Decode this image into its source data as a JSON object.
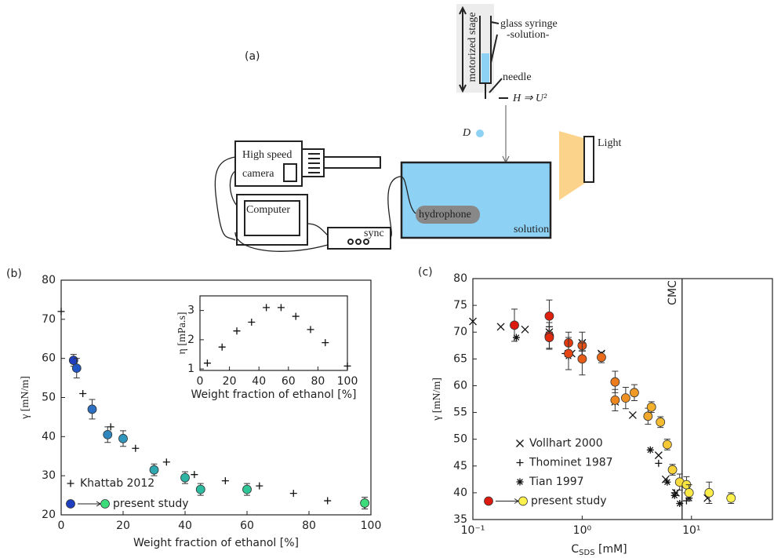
{
  "diagram": {
    "panel": "(a)",
    "stage": "motorized stage",
    "syringe": "glass syringe",
    "solution_inner": "-solution-",
    "needle": "needle",
    "height": "H ⇒ U²",
    "drop": "D",
    "camera_1": "High speed",
    "camera_2": "camera",
    "computer": "Computer",
    "sync": "sync",
    "hydrophone": "hydrophone",
    "tank": "solution",
    "light": "Light"
  },
  "chart_data": [
    {
      "type": "scatter",
      "panel": "(b)",
      "x_label": "Weight fraction of ethanol [%]",
      "y_label": "γ [mN/m]",
      "xlim": [
        0,
        100
      ],
      "ylim": [
        20,
        80
      ],
      "xticks": [
        0,
        20,
        40,
        60,
        80,
        100
      ],
      "yticks": [
        20,
        30,
        40,
        50,
        60,
        70,
        80
      ],
      "series": [
        {
          "name": "Khattab 2012",
          "marker": "plus",
          "color": "#111111",
          "x": [
            0,
            7,
            16,
            24,
            34,
            43,
            53,
            64,
            75,
            86,
            98
          ],
          "values": [
            72,
            51,
            42.5,
            37,
            33.5,
            30.3,
            28.7,
            27.4,
            25.5,
            23.6,
            22.5
          ]
        },
        {
          "name": "present study",
          "marker": "circle",
          "color": "#111111",
          "x": [
            4,
            5,
            10,
            15,
            20,
            30,
            40,
            45,
            60,
            98
          ],
          "values": [
            59.5,
            57.5,
            47,
            40.5,
            39.5,
            31.5,
            29.5,
            26.5,
            26.5,
            23
          ],
          "errors": [
            1.5,
            2.5,
            2.5,
            2,
            2,
            1.5,
            1.5,
            1.5,
            1.5,
            1.5
          ],
          "colors": [
            "#1f3fbf",
            "#2255c4",
            "#2b6fc2",
            "#2f86bf",
            "#3196bb",
            "#2fa7b0",
            "#2db4a5",
            "#2bbca0",
            "#2ec696",
            "#3ddc7a"
          ]
        }
      ]
    },
    {
      "type": "scatter",
      "x_label": "Weight fraction of ethanol [%]",
      "y_label": "η [mPa.s]",
      "xlim": [
        0,
        100
      ],
      "ylim": [
        0.95,
        3.5
      ],
      "xticks": [
        0,
        20,
        40,
        60,
        80,
        100
      ],
      "yticks": [
        1,
        2,
        3
      ],
      "series": [
        {
          "marker": "plus",
          "color": "#111111",
          "x": [
            5,
            15,
            25,
            35,
            45,
            55,
            65,
            75,
            85,
            100
          ],
          "values": [
            1.2,
            1.75,
            2.3,
            2.6,
            3.1,
            3.1,
            2.8,
            2.35,
            1.9,
            1.1
          ]
        }
      ]
    },
    {
      "type": "scatter",
      "panel": "(c)",
      "xscale": "log",
      "x_label": {
        "main": "C",
        "sub": "SDS",
        "unit": " [mM]"
      },
      "y_label": "γ [mN/m]",
      "xlim": [
        0.1,
        55
      ],
      "ylim": [
        35,
        80
      ],
      "xticks": [
        {
          "value": 0.1,
          "label": "10⁻¹"
        },
        {
          "value": 1,
          "label": "10⁰"
        },
        {
          "value": 10,
          "label": "10¹"
        }
      ],
      "yticks": [
        35,
        40,
        45,
        50,
        55,
        60,
        65,
        70,
        75,
        80
      ],
      "cmc": {
        "x": 8.2,
        "label": "CMC"
      },
      "series": [
        {
          "name": "Vollhart 2000",
          "marker": "cross",
          "color": "#111111",
          "x": [
            0.1,
            0.18,
            0.3,
            0.5,
            0.8,
            1.0,
            1.5,
            2.0,
            2.9,
            5.0,
            5.8,
            7.2,
            14
          ],
          "values": [
            72,
            71,
            70.5,
            70,
            66,
            68,
            66,
            57,
            54.5,
            47,
            42.5,
            40,
            39
          ]
        },
        {
          "name": "Thominet 1987",
          "marker": "plus",
          "color": "#111111",
          "x": [
            0.5,
            0.7,
            1,
            2,
            5,
            7,
            9
          ],
          "values": [
            71,
            66,
            66.5,
            57,
            45.5,
            40,
            38.5
          ]
        },
        {
          "name": "Tian 1997",
          "marker": "asterisk",
          "color": "#111111",
          "x": [
            0.25,
            0.5,
            0.75,
            1,
            4.2,
            6,
            7,
            7.8,
            9.5
          ],
          "values": [
            69,
            70,
            65.5,
            68,
            48,
            42,
            39.5,
            38,
            39
          ]
        },
        {
          "name": "present study",
          "marker": "circle",
          "color": "#111111",
          "x": [
            0.24,
            0.5,
            0.5,
            0.5,
            0.75,
            0.75,
            1,
            1,
            1.5,
            2,
            2,
            2.5,
            3,
            4,
            4.3,
            5.2,
            6,
            6.7,
            7.8,
            9,
            9.5,
            14.5,
            23
          ],
          "values": [
            71.3,
            73,
            69.3,
            69,
            68,
            66,
            67.5,
            65,
            65.3,
            60.7,
            57.3,
            57.7,
            58.7,
            54.3,
            56,
            53.2,
            49,
            44.3,
            42,
            41.5,
            40,
            40,
            39
          ],
          "errors": [
            3,
            3,
            2.5,
            2,
            2,
            3,
            2.5,
            3,
            1,
            2,
            2,
            2,
            1.5,
            1.5,
            1,
            1,
            1,
            1,
            1.5,
            1.5,
            1.5,
            2,
            1
          ],
          "colors": [
            "#dd1a10",
            "#e0200f",
            "#e1250f",
            "#e22a0f",
            "#e43a10",
            "#e54512",
            "#e65214",
            "#e75c16",
            "#e96a18",
            "#ec7c1c",
            "#ee861e",
            "#ef9022",
            "#f09a25",
            "#f2a82a",
            "#f3b02d",
            "#f5bc32",
            "#f6c836",
            "#f7d23a",
            "#f8dc3e",
            "#f9e442",
            "#fae945",
            "#fbee48",
            "#fdf24c"
          ]
        }
      ]
    }
  ]
}
